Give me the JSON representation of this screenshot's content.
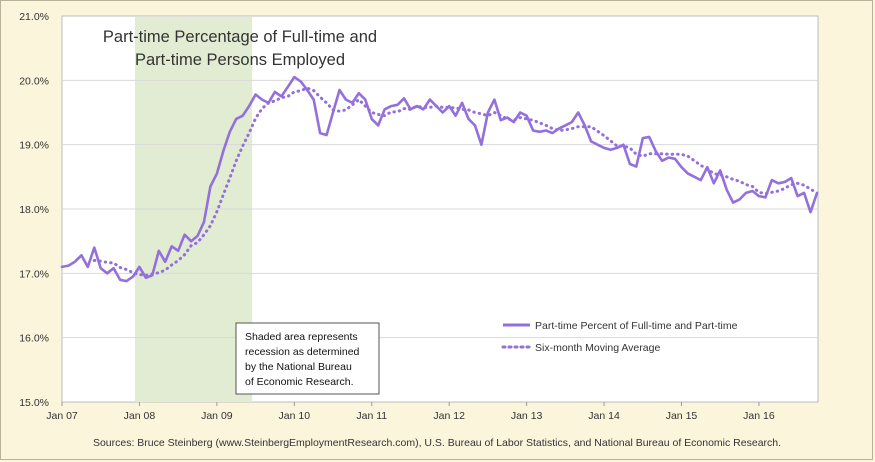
{
  "chart_data": {
    "type": "line",
    "title_lines": [
      "Part-time Percentage of Full-time and",
      "Part-time Persons Employed"
    ],
    "xlabel": "",
    "ylabel": "",
    "ylim": [
      15.0,
      21.0
    ],
    "y_ticks": [
      "15.0%",
      "16.0%",
      "17.0%",
      "18.0%",
      "19.0%",
      "20.0%",
      "21.0%"
    ],
    "x_ticks": [
      "Jan 07",
      "Jan 08",
      "Jan 09",
      "Jan 10",
      "Jan 11",
      "Jan 12",
      "Jan 13",
      "Jan 14",
      "Jan 15",
      "Jan 16"
    ],
    "x_range": [
      "2007-01",
      "2016-10"
    ],
    "grid": "horizontal",
    "recession_shade": {
      "start": "2007-12",
      "end": "2009-06",
      "color": "#e2ecd3"
    },
    "legend": {
      "placement": "bottom-right",
      "entries": [
        "Part-time Percent of Full-time and Part-time",
        "Six-month Moving Average"
      ]
    },
    "note_lines": [
      "Shaded area represents",
      "recession as determined",
      "by the National Bureau",
      "of Economic Research."
    ],
    "source": "Sources: Bruce Steinberg (www.SteinbergEmploymentResearch.com), U.S. Bureau of Labor Statistics, and National Bureau of Economic Research.",
    "start_month": "2007-01",
    "series": [
      {
        "name": "Part-time Percent of Full-time and Part-time",
        "color": "#9370db",
        "style": "solid",
        "values": [
          17.1,
          17.12,
          17.18,
          17.28,
          17.1,
          17.4,
          17.08,
          17.0,
          17.08,
          16.9,
          16.88,
          16.95,
          17.1,
          16.93,
          16.97,
          17.35,
          17.18,
          17.42,
          17.35,
          17.6,
          17.5,
          17.58,
          17.8,
          18.35,
          18.55,
          18.9,
          19.2,
          19.4,
          19.45,
          19.6,
          19.78,
          19.7,
          19.65,
          19.82,
          19.75,
          19.9,
          20.05,
          19.98,
          19.85,
          19.7,
          19.18,
          19.15,
          19.5,
          19.85,
          19.7,
          19.65,
          19.8,
          19.7,
          19.4,
          19.3,
          19.55,
          19.6,
          19.62,
          19.72,
          19.55,
          19.6,
          19.55,
          19.7,
          19.6,
          19.5,
          19.6,
          19.45,
          19.65,
          19.4,
          19.3,
          19.0,
          19.5,
          19.7,
          19.38,
          19.42,
          19.35,
          19.5,
          19.45,
          19.22,
          19.2,
          19.22,
          19.18,
          19.25,
          19.3,
          19.35,
          19.5,
          19.3,
          19.05,
          19.0,
          18.95,
          18.92,
          18.95,
          19.0,
          18.7,
          18.66,
          19.1,
          19.12,
          18.9,
          18.75,
          18.8,
          18.78,
          18.65,
          18.55,
          18.5,
          18.45,
          18.65,
          18.4,
          18.6,
          18.3,
          18.1,
          18.15,
          18.25,
          18.28,
          18.2,
          18.18,
          18.45,
          18.4,
          18.42,
          18.48,
          18.2,
          18.25,
          17.95,
          18.25
        ]
      },
      {
        "name": "Six-month Moving Average",
        "color": "#9370db",
        "style": "dotted",
        "values": [
          null,
          null,
          null,
          null,
          null,
          17.2,
          17.19,
          17.17,
          17.16,
          17.09,
          17.06,
          17.01,
          16.98,
          16.97,
          16.99,
          17.01,
          17.05,
          17.13,
          17.2,
          17.29,
          17.43,
          17.48,
          17.6,
          17.74,
          17.96,
          18.22,
          18.48,
          18.75,
          18.98,
          19.18,
          19.41,
          19.56,
          19.65,
          19.68,
          19.73,
          19.75,
          19.82,
          19.84,
          19.88,
          19.84,
          19.74,
          19.65,
          19.54,
          19.52,
          19.54,
          19.62,
          19.7,
          19.6,
          19.5,
          19.47,
          19.45,
          19.51,
          19.51,
          19.56,
          19.55,
          19.6,
          19.58,
          19.58,
          19.6,
          19.58,
          19.58,
          19.57,
          19.55,
          19.54,
          19.5,
          19.48,
          19.45,
          19.5,
          19.45,
          19.4,
          19.38,
          19.42,
          19.4,
          19.38,
          19.34,
          19.3,
          19.25,
          19.22,
          19.23,
          19.25,
          19.28,
          19.28,
          19.28,
          19.21,
          19.14,
          19.06,
          18.98,
          18.98,
          18.95,
          18.85,
          18.82,
          18.86,
          18.86,
          18.86,
          18.85,
          18.85,
          18.85,
          18.82,
          18.75,
          18.68,
          18.62,
          18.55,
          18.53,
          18.5,
          18.46,
          18.43,
          18.38,
          18.35,
          18.26,
          18.24,
          18.26,
          18.28,
          18.32,
          18.38,
          18.4,
          18.37,
          18.31,
          18.25
        ]
      }
    ]
  }
}
